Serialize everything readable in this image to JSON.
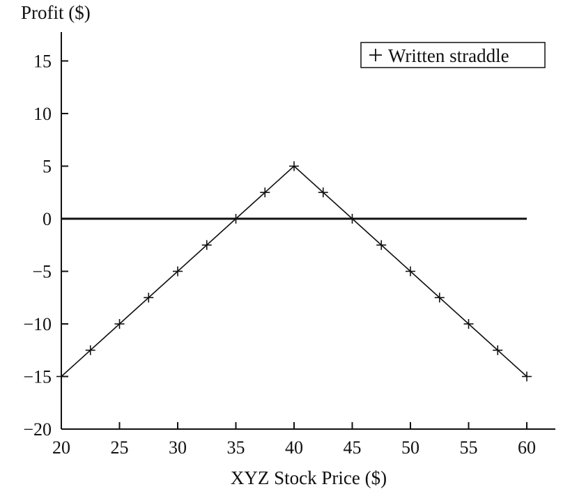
{
  "chart_data": {
    "type": "line",
    "title": "",
    "ylabel": "Profit ($)",
    "xlabel": "XYZ Stock Price ($)",
    "xlim": [
      20,
      62.5
    ],
    "ylim": [
      -20,
      18
    ],
    "x_ticks": [
      "20",
      "25",
      "30",
      "35",
      "40",
      "45",
      "50",
      "55",
      "60"
    ],
    "y_ticks": [
      "15",
      "10",
      "5",
      "0",
      "−5",
      "−10",
      "−15",
      "−20"
    ],
    "grid": false,
    "legend_position": "top-right",
    "zero_line": true,
    "series": [
      {
        "name": "Written straddle",
        "marker": "+",
        "x": [
          20,
          22.5,
          25,
          27.5,
          30,
          32.5,
          35,
          37.5,
          40,
          42.5,
          45,
          47.5,
          50,
          52.5,
          55,
          57.5,
          60
        ],
        "y": [
          -15,
          -12.5,
          -10,
          -7.5,
          -5,
          -2.5,
          0,
          2.5,
          5,
          2.5,
          0,
          -2.5,
          -5,
          -7.5,
          -10,
          -12.5,
          -15
        ]
      }
    ]
  }
}
